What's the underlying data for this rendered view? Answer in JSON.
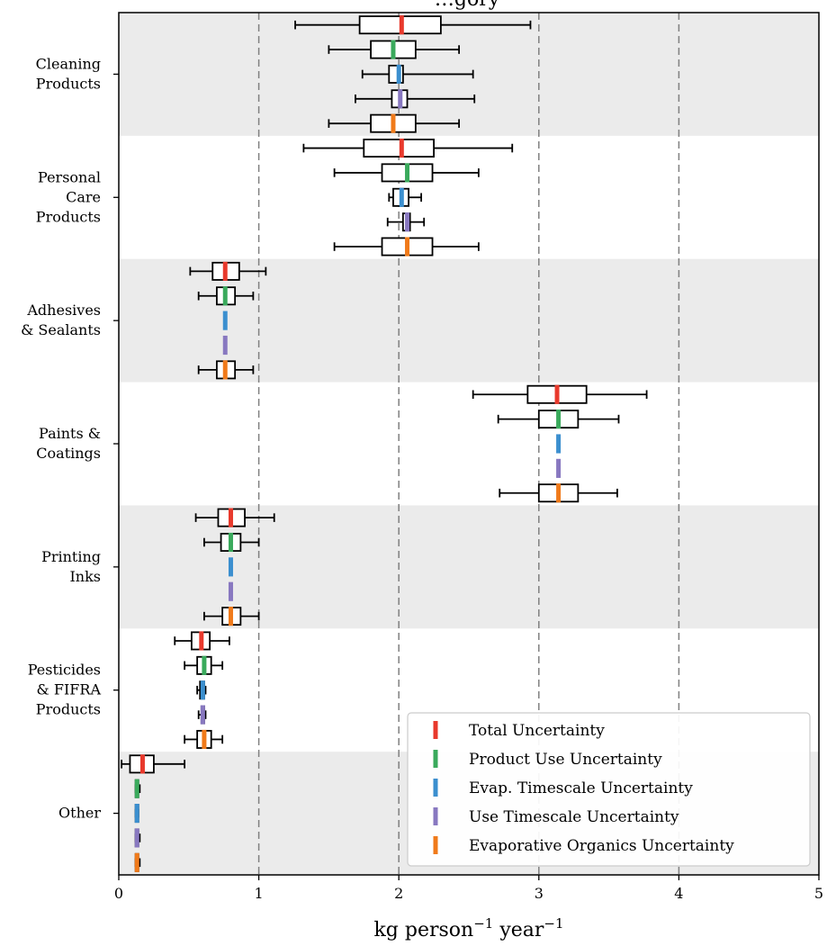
{
  "chart_data": {
    "type": "boxplot",
    "title": "…gory",
    "xlabel": "kg person$^{-1}$ year$^{-1}$",
    "xlim": [
      0,
      5
    ],
    "xticks": [
      0,
      1,
      2,
      3,
      4,
      5
    ],
    "gridlines_x": [
      1,
      2,
      3,
      4
    ],
    "legend_position": "lower-right",
    "series": [
      {
        "name": "Total Uncertainty",
        "color": "#e8392c"
      },
      {
        "name": "Product Use Uncertainty",
        "color": "#3aaa5c"
      },
      {
        "name": "Evap. Timescale Uncertainty",
        "color": "#3b8fcf"
      },
      {
        "name": "Use Timescale Uncertainty",
        "color": "#8878c0"
      },
      {
        "name": "Evaporative Organics Uncertainty",
        "color": "#f07a1a"
      }
    ],
    "categories": [
      {
        "label": [
          "Cleaning",
          "Products"
        ],
        "shaded": true,
        "boxes": [
          {
            "whislo": 1.26,
            "q1": 1.72,
            "med": 2.02,
            "q3": 2.3,
            "whishi": 2.94
          },
          {
            "whislo": 1.5,
            "q1": 1.8,
            "med": 1.96,
            "q3": 2.12,
            "whishi": 2.43
          },
          {
            "whislo": 1.74,
            "q1": 1.93,
            "med": 2.0,
            "q3": 2.03,
            "whishi": 2.53
          },
          {
            "whislo": 1.69,
            "q1": 1.95,
            "med": 2.01,
            "q3": 2.06,
            "whishi": 2.54
          },
          {
            "whislo": 1.5,
            "q1": 1.8,
            "med": 1.96,
            "q3": 2.12,
            "whishi": 2.43
          }
        ]
      },
      {
        "label": [
          "Personal",
          "Care",
          "Products"
        ],
        "shaded": false,
        "boxes": [
          {
            "whislo": 1.32,
            "q1": 1.75,
            "med": 2.02,
            "q3": 2.25,
            "whishi": 2.81
          },
          {
            "whislo": 1.54,
            "q1": 1.88,
            "med": 2.06,
            "q3": 2.24,
            "whishi": 2.57
          },
          {
            "whislo": 1.93,
            "q1": 1.96,
            "med": 2.02,
            "q3": 2.07,
            "whishi": 2.16
          },
          {
            "whislo": 1.92,
            "q1": 2.03,
            "med": 2.06,
            "q3": 2.08,
            "whishi": 2.18
          },
          {
            "whislo": 1.54,
            "q1": 1.88,
            "med": 2.06,
            "q3": 2.24,
            "whishi": 2.57
          }
        ]
      },
      {
        "label": [
          "Adhesives",
          "& Sealants"
        ],
        "shaded": true,
        "boxes": [
          {
            "whislo": 0.51,
            "q1": 0.67,
            "med": 0.76,
            "q3": 0.86,
            "whishi": 1.05
          },
          {
            "whislo": 0.57,
            "q1": 0.7,
            "med": 0.76,
            "q3": 0.83,
            "whishi": 0.96
          },
          {
            "whislo": 0.76,
            "q1": 0.76,
            "med": 0.76,
            "q3": 0.76,
            "whishi": 0.76
          },
          {
            "whislo": 0.76,
            "q1": 0.76,
            "med": 0.76,
            "q3": 0.76,
            "whishi": 0.76
          },
          {
            "whislo": 0.57,
            "q1": 0.7,
            "med": 0.76,
            "q3": 0.83,
            "whishi": 0.96
          }
        ]
      },
      {
        "label": [
          "Paints &",
          "Coatings"
        ],
        "shaded": false,
        "boxes": [
          {
            "whislo": 2.53,
            "q1": 2.92,
            "med": 3.13,
            "q3": 3.34,
            "whishi": 3.77
          },
          {
            "whislo": 2.71,
            "q1": 3.0,
            "med": 3.14,
            "q3": 3.28,
            "whishi": 3.57
          },
          {
            "whislo": 3.14,
            "q1": 3.14,
            "med": 3.14,
            "q3": 3.14,
            "whishi": 3.14
          },
          {
            "whislo": 3.14,
            "q1": 3.14,
            "med": 3.14,
            "q3": 3.14,
            "whishi": 3.14
          },
          {
            "whislo": 2.72,
            "q1": 3.0,
            "med": 3.14,
            "q3": 3.28,
            "whishi": 3.56
          }
        ]
      },
      {
        "label": [
          "Printing",
          "Inks"
        ],
        "shaded": true,
        "boxes": [
          {
            "whislo": 0.55,
            "q1": 0.71,
            "med": 0.8,
            "q3": 0.9,
            "whishi": 1.11
          },
          {
            "whislo": 0.61,
            "q1": 0.73,
            "med": 0.8,
            "q3": 0.87,
            "whishi": 1.0
          },
          {
            "whislo": 0.8,
            "q1": 0.8,
            "med": 0.8,
            "q3": 0.8,
            "whishi": 0.8
          },
          {
            "whislo": 0.8,
            "q1": 0.8,
            "med": 0.8,
            "q3": 0.8,
            "whishi": 0.8
          },
          {
            "whislo": 0.61,
            "q1": 0.74,
            "med": 0.8,
            "q3": 0.87,
            "whishi": 1.0
          }
        ]
      },
      {
        "label": [
          "Pesticides",
          "& FIFRA",
          "Products"
        ],
        "shaded": false,
        "boxes": [
          {
            "whislo": 0.4,
            "q1": 0.52,
            "med": 0.59,
            "q3": 0.65,
            "whishi": 0.79
          },
          {
            "whislo": 0.47,
            "q1": 0.56,
            "med": 0.61,
            "q3": 0.66,
            "whishi": 0.74
          },
          {
            "whislo": 0.56,
            "q1": 0.58,
            "med": 0.6,
            "q3": 0.61,
            "whishi": 0.62
          },
          {
            "whislo": 0.57,
            "q1": 0.59,
            "med": 0.6,
            "q3": 0.61,
            "whishi": 0.62
          },
          {
            "whislo": 0.47,
            "q1": 0.56,
            "med": 0.61,
            "q3": 0.66,
            "whishi": 0.74
          }
        ]
      },
      {
        "label": [
          "Other"
        ],
        "shaded": true,
        "boxes": [
          {
            "whislo": 0.02,
            "q1": 0.08,
            "med": 0.17,
            "q3": 0.25,
            "whishi": 0.47
          },
          {
            "whislo": 0.12,
            "q1": 0.12,
            "med": 0.13,
            "q3": 0.14,
            "whishi": 0.15
          },
          {
            "whislo": 0.12,
            "q1": 0.12,
            "med": 0.13,
            "q3": 0.14,
            "whishi": 0.14
          },
          {
            "whislo": 0.12,
            "q1": 0.12,
            "med": 0.13,
            "q3": 0.14,
            "whishi": 0.15
          },
          {
            "whislo": 0.12,
            "q1": 0.12,
            "med": 0.13,
            "q3": 0.14,
            "whishi": 0.15
          }
        ]
      }
    ]
  }
}
